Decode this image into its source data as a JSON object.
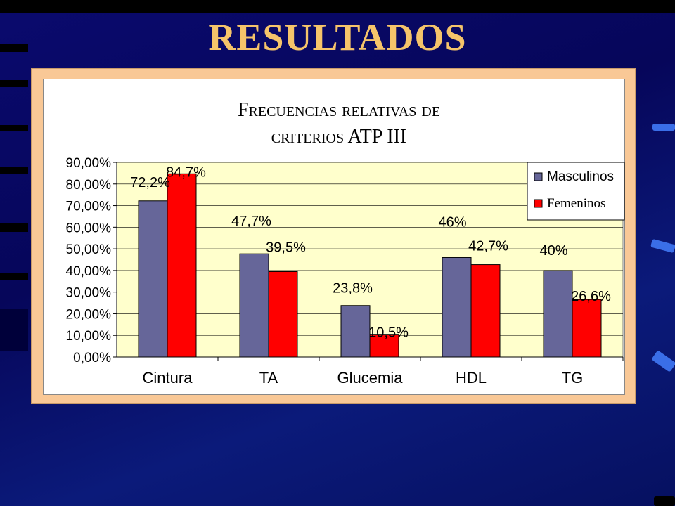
{
  "slide": {
    "title": "RESULTADOS"
  },
  "chart_data": {
    "type": "bar",
    "title_line1": "Frecuencias relativas de",
    "title_line2": "criterios ATP III",
    "categories": [
      "Cintura",
      "TA",
      "Glucemia",
      "HDL",
      "TG"
    ],
    "series": [
      {
        "name": "Masculinos",
        "color": "#666699",
        "values": [
          72.2,
          47.7,
          23.8,
          46,
          40
        ],
        "labels": [
          "72,2%",
          "47,7%",
          "23,8%",
          "46%",
          "40%"
        ]
      },
      {
        "name": "Femeninos",
        "color": "#FF0000",
        "values": [
          84.7,
          39.5,
          10.5,
          42.7,
          26.6
        ],
        "labels": [
          "84,7%",
          "39,5%",
          "10,5%",
          "42,7%",
          "26,6%"
        ]
      }
    ],
    "ylim": [
      0,
      90
    ],
    "yticks": [
      "0,00%",
      "10,00%",
      "20,00%",
      "30,00%",
      "40,00%",
      "50,00%",
      "60,00%",
      "70,00%",
      "80,00%",
      "90,00%"
    ],
    "plot_background": "#FFFFCC",
    "grid": true,
    "legend_position": "top-right"
  }
}
